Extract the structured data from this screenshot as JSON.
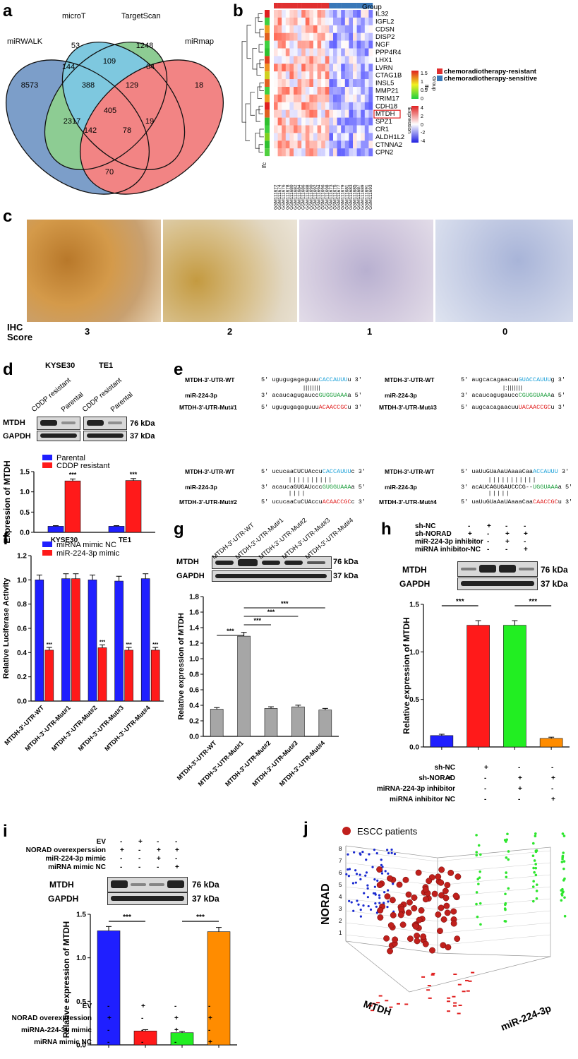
{
  "panels": {
    "a": "a",
    "b": "b",
    "c": "c",
    "d": "d",
    "e": "e",
    "f": "f",
    "g": "g",
    "h": "h",
    "i": "i",
    "j": "j"
  },
  "venn": {
    "sets": [
      "miRWALK",
      "microT",
      "TargetScan",
      "miRmap"
    ],
    "colors": [
      "#4a7ab5",
      "#62b96a",
      "#4db3d4",
      "#ee5555"
    ],
    "regions": [
      "8573",
      "53",
      "1248",
      "18",
      "144",
      "109",
      "64",
      "388",
      "129",
      "2317",
      "405",
      "19",
      "142",
      "78",
      "70"
    ]
  },
  "heatmap": {
    "genes": [
      "IL32",
      "IGFL2",
      "CDSN",
      "DISP2",
      "NGF",
      "PPP4R4",
      "LHX1",
      "LVRN",
      "CTAG1B",
      "INSL5",
      "MMP21",
      "TRIM17",
      "CDH18",
      "MTDH",
      "SPZ1",
      "CR1",
      "ALDH1L2",
      "CTNNA2",
      "CPN2"
    ],
    "highlight": "MTDH",
    "group_label": "Group",
    "lfc_label": "lfc",
    "row_annot_label": "lfc",
    "legend_group_title": "Group",
    "legend_lfc_title": "lfc",
    "legend_expr_title": "Expression",
    "legend_groups": [
      {
        "name": "chemoradiotherapy-resistant",
        "color": "#e03030"
      },
      {
        "name": "chemoradiotherapy-sensitive",
        "color": "#3a78b8"
      }
    ],
    "lfc_ticks": [
      "1.5",
      "1",
      "0.5",
      "0"
    ],
    "expr_ticks": [
      "4",
      "2",
      "0",
      "-2",
      "-4"
    ],
    "samples": [
      "GSM111672",
      "GSM111674",
      "GSM111676",
      "GSM111678",
      "GSM111680",
      "GSM111682",
      "GSM111684",
      "GSM111686",
      "GSM111688",
      "GSM111690",
      "GSM111692",
      "GSM111694",
      "GSM111696",
      "GSM111698",
      "GSM111673",
      "GSM111675",
      "GSM111677",
      "GSM111679",
      "GSM111681",
      "GSM111683",
      "GSM111685",
      "GSM111687",
      "GSM111689",
      "GSM111691",
      "GSM111693"
    ]
  },
  "ihc": {
    "row_label_1": "IHC",
    "row_label_2": "Score",
    "scores": [
      "3",
      "2",
      "1",
      "0"
    ]
  },
  "panel_d": {
    "cells": [
      "KYSE30",
      "TE1"
    ],
    "lanes": [
      "CDDP resistant",
      "Parental",
      "CDDP resistant",
      "Parental"
    ],
    "proteins": [
      "MTDH",
      "GAPDH"
    ],
    "kda": [
      "76 kDa",
      "37 kDa"
    ],
    "legend": [
      "Parental",
      "CDDP resistant"
    ],
    "sig": "***"
  },
  "panel_e": {
    "left": [
      {
        "label": "MTDH-3'-UTR-WT",
        "p5": "5'",
        "seq_black": "ugugugagaguuu",
        "seq_color": "CACCAUUU",
        "seq_tail": "u",
        "p3": "3'"
      },
      {
        "label": "miR-224-3p",
        "p5": "3'",
        "seq_black": "acaucagugaucc",
        "seq_color": "GUGGUAAA",
        "seq_tail": "a",
        "p3": "5'"
      },
      {
        "label": "MTDH-3'-UTR-Mut#1",
        "p5": "5'",
        "seq_black": "ugugugagaguuu",
        "seq_color": "ACAACCGC",
        "seq_tail": "u",
        "p3": "3'"
      },
      {
        "label": "MTDH-3'-UTR-WT",
        "p5": "5'",
        "seq_black": "ucucaaCUCUAccu",
        "seq_color": "CACCAUUU",
        "seq_tail": "c",
        "p3": "3'"
      },
      {
        "label": "miR-224-3p",
        "p5": "3'",
        "seq_black": "acaucaGUGAUccc",
        "seq_color": "GUGGUAAA",
        "seq_tail": "a",
        "p3": "5'"
      },
      {
        "label": "MTDH-3'-UTR-Mut#2",
        "p5": "5'",
        "seq_black": "ucucaaCuCUAccu",
        "seq_color": "ACAACCGC",
        "seq_tail": "c",
        "p3": "3'"
      }
    ],
    "right": [
      {
        "label": "MTDH-3'-UTR-WT",
        "p5": "5'",
        "seq_black": "augcacagaacuu",
        "seq_color": "GUACCAUUU",
        "seq_tail": "g",
        "p3": "3'"
      },
      {
        "label": "miR-224-3p",
        "p5": "3'",
        "seq_black": "acaucagugaucc",
        "seq_color": "CGUGGUAAA",
        "seq_tail": "a",
        "p3": "5'"
      },
      {
        "label": "MTDH-3'-UTR-Mut#3",
        "p5": "5'",
        "seq_black": "augcacagaacuu",
        "seq_color": "UACAACCGC",
        "seq_tail": "u",
        "p3": "3'"
      },
      {
        "label": "MTDH-3'-UTR-WT",
        "p5": "5'",
        "seq_black": "uaUuGUaAaUAaaaCaa",
        "seq_color": "ACCAUUU",
        "seq_tail": "",
        "p3": "3'"
      },
      {
        "label": "miR-224-3p",
        "p5": "3'",
        "seq_black": "acAUCAGUGAUCCCG--",
        "seq_color": "UGGUAAA",
        "seq_tail": "a",
        "p3": "5'"
      },
      {
        "label": "MTDH-3'-UTR-Mut#4",
        "p5": "5'",
        "seq_black": "uaUuGUaAaUAaaaCaa",
        "seq_color": "CAACCGC",
        "seq_tail": "u",
        "p3": "3'"
      }
    ]
  },
  "panel_f": {
    "legend": [
      "miRNA mimic NC",
      "miR-224-3p mimic"
    ],
    "ylabel": "Relative Luciferase Activity",
    "sig": "***"
  },
  "panel_g": {
    "proteins": [
      "MTDH",
      "GAPDH"
    ],
    "kda": [
      "76 kDa",
      "37 kDa"
    ],
    "lanes": [
      "MTDH-3'-UTR-WT",
      "MTDH-3'-UTR-Mut#1",
      "MTDH-3'-UTR-Mut#2",
      "MTDH-3'-UTR-Mut#3",
      "MTDH-3'-UTR-Mut#4"
    ],
    "sig": "***"
  },
  "panel_h": {
    "cond_labels": [
      "sh-NC",
      "sh-NORAD",
      "miR-224-3p inhibitor",
      "miRNA inhibitor NC"
    ],
    "cond_labels_bottom": [
      "sh-NC",
      "sh-NORAD",
      "miRNA-224-3p inhibitor",
      "miRNA inhibitor NC"
    ],
    "grid": [
      [
        "-",
        "+",
        "-",
        "-"
      ],
      [
        "+",
        "-",
        "+",
        "+"
      ],
      [
        "-",
        "-",
        "+",
        "-"
      ],
      [
        "-",
        "-",
        "-",
        "+"
      ]
    ],
    "grid_bottom": [
      [
        "-",
        "+",
        "-",
        "-"
      ],
      [
        "+",
        "-",
        "+",
        "+"
      ],
      [
        "-",
        "-",
        "+",
        "-"
      ],
      [
        "-",
        "-",
        "-",
        "+"
      ]
    ],
    "proteins": [
      "MTDH",
      "GAPDH"
    ],
    "kda": [
      "76 kDa",
      "37 kDa"
    ],
    "sig": "***"
  },
  "panel_i": {
    "cond_labels": [
      "EV",
      "NORAD overexperssion",
      "miR-224-3p mimic",
      "miRNA mimic NC"
    ],
    "cond_labels_bottom": [
      "EV",
      "NORAD overexpression",
      "miRNA-224-3p mimic",
      "miRNA mimic NC"
    ],
    "grid": [
      [
        "-",
        "+",
        "-",
        "-"
      ],
      [
        "+",
        "-",
        "+",
        "+"
      ],
      [
        "-",
        "-",
        "+",
        "-"
      ],
      [
        "-",
        "-",
        "-",
        "+"
      ]
    ],
    "proteins": [
      "MTDH",
      "GAPDH"
    ],
    "kda": [
      "76 kDa",
      "37 kDa"
    ],
    "sig": "***"
  },
  "panel_j": {
    "legend": "ESCC patients",
    "axis_z": "NORAD",
    "axis_x": "MTDH",
    "axis_y": "miR-224-3p",
    "z_ticks": [
      "1",
      "2",
      "3",
      "4",
      "5",
      "6",
      "7",
      "8"
    ]
  },
  "chart_data": [
    {
      "type": "bar",
      "panel": "d",
      "categories": [
        "KYSE30",
        "TE1"
      ],
      "series": [
        {
          "name": "Parental",
          "values": [
            0.15,
            0.15
          ]
        },
        {
          "name": "CDDP resistant",
          "values": [
            1.27,
            1.28
          ]
        }
      ],
      "ylabel": "Expression of MTDH",
      "ylim": [
        0,
        1.5
      ],
      "yticks": [
        "0.0",
        "0.5",
        "1.0",
        "1.5"
      ],
      "colors": [
        "#1f1fff",
        "#ff1a1a"
      ]
    },
    {
      "type": "bar",
      "panel": "f",
      "categories": [
        "MTDH-3'-UTR-WT",
        "MTDH-3'-UTR-Mut#1",
        "MTDH-3'-UTR-Mut#2",
        "MTDH-3'-UTR-Mut#3",
        "MTDH-3'-UTR-Mut#4"
      ],
      "series": [
        {
          "name": "miRNA mimic NC",
          "values": [
            1.0,
            1.01,
            1.0,
            0.99,
            1.01
          ]
        },
        {
          "name": "miR-224-3p mimic",
          "values": [
            0.42,
            1.01,
            0.44,
            0.42,
            0.42
          ]
        }
      ],
      "ylabel": "Relative Luciferase Activity",
      "ylim": [
        0,
        1.2
      ],
      "yticks": [
        "0.0",
        "0.2",
        "0.4",
        "0.6",
        "0.8",
        "1.0",
        "1.2"
      ],
      "colors": [
        "#1f1fff",
        "#ff1a1a"
      ]
    },
    {
      "type": "bar",
      "panel": "g",
      "categories": [
        "MTDH-3'-UTR-WT",
        "MTDH-3'-UTR-Mut#1",
        "MTDH-3'-UTR-Mut#2",
        "MTDH-3'-UTR-Mut#3",
        "MTDH-3'-UTR-Mut#4"
      ],
      "values": [
        0.35,
        1.29,
        0.36,
        0.38,
        0.34
      ],
      "ylabel": "Relative expression of MTDH",
      "ylim": [
        0,
        1.8
      ],
      "yticks": [
        "0.0",
        "0.2",
        "0.4",
        "0.6",
        "0.8",
        "1.0",
        "1.2",
        "1.4",
        "1.6",
        "1.8"
      ],
      "colors": [
        "#a6a6a6"
      ]
    },
    {
      "type": "bar",
      "panel": "h",
      "categories": [
        "1",
        "2",
        "3",
        "4"
      ],
      "values": [
        0.12,
        1.28,
        1.28,
        0.09
      ],
      "ylabel": "Relative expression of MTDH",
      "ylim": [
        0,
        1.5
      ],
      "yticks": [
        "0.0",
        "0.5",
        "1.0",
        "1.5"
      ],
      "colors": [
        "#1f1fff",
        "#ff1a1a",
        "#22ee22",
        "#ff8c00"
      ]
    },
    {
      "type": "bar",
      "panel": "i",
      "categories": [
        "1",
        "2",
        "3",
        "4"
      ],
      "values": [
        1.31,
        0.16,
        0.14,
        1.3
      ],
      "ylabel": "Relative expression of MTDH",
      "ylim": [
        0,
        1.5
      ],
      "yticks": [
        "0.0",
        "0.5",
        "1.0",
        "1.5"
      ],
      "colors": [
        "#1f1fff",
        "#ff1a1a",
        "#22ee22",
        "#ff8c00"
      ]
    }
  ]
}
